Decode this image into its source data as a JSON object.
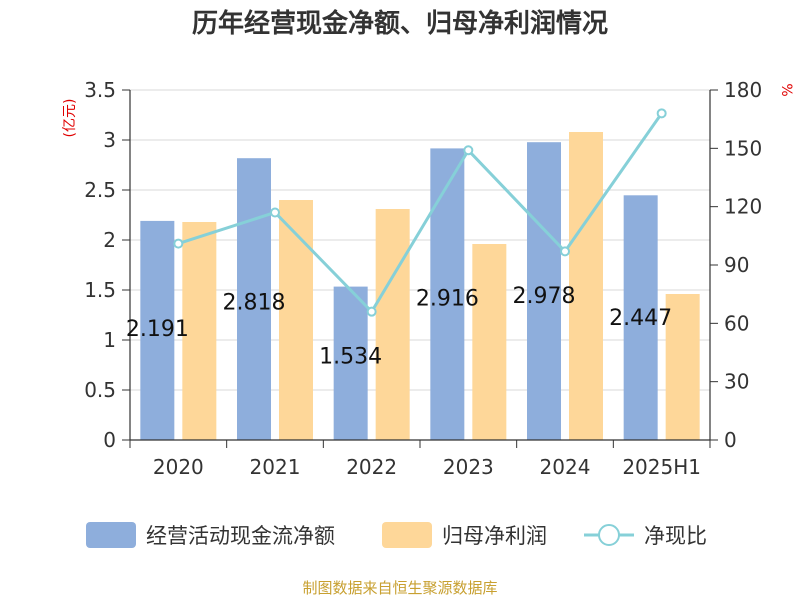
{
  "chart_data": {
    "type": "bar",
    "title": "历年经营现金净额、归母净利润情况",
    "y_left_unit": "(亿元)",
    "y_right_unit": "%",
    "categories": [
      "2020",
      "2021",
      "2022",
      "2023",
      "2024",
      "2025H1"
    ],
    "y_left_ticks": [
      "0",
      "0.5",
      "1",
      "1.5",
      "2",
      "2.5",
      "3",
      "3.5"
    ],
    "y_right_ticks": [
      "0",
      "30",
      "60",
      "90",
      "120",
      "150",
      "180"
    ],
    "ylim_left": [
      0,
      3.5
    ],
    "ylim_right": [
      0,
      180
    ],
    "series": [
      {
        "name": "经营活动现金流净额",
        "type": "bar",
        "axis": "left",
        "color": "#8eaedc",
        "values": [
          2.191,
          2.818,
          1.534,
          2.916,
          2.978,
          2.447
        ],
        "labels": [
          "2.191",
          "2.818",
          "1.534",
          "2.916",
          "2.978",
          "2.447"
        ]
      },
      {
        "name": "归母净利润",
        "type": "bar",
        "axis": "left",
        "color": "#fed799",
        "values": [
          2.18,
          2.4,
          2.31,
          1.96,
          3.08,
          1.46
        ]
      },
      {
        "name": "净现比",
        "type": "line",
        "axis": "right",
        "color": "#86d0d8",
        "values": [
          101,
          117,
          66,
          149,
          97,
          168
        ]
      }
    ],
    "grid": true,
    "legend_position": "bottom"
  },
  "source_note": "制图数据来自恒生聚源数据库"
}
